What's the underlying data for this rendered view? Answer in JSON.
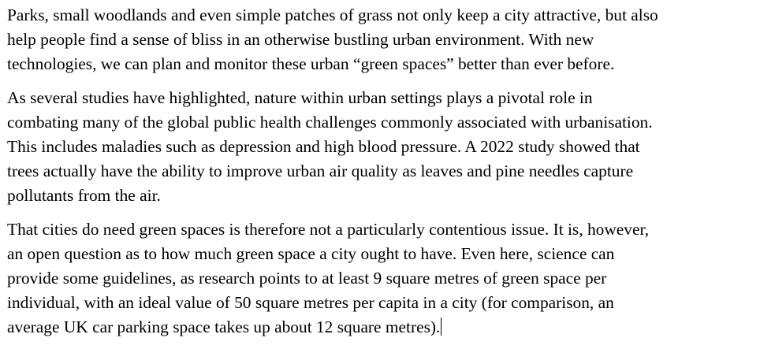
{
  "document": {
    "paragraphs": [
      {
        "lines": [
          "Parks, small woodlands and even simple patches of grass not only keep a city attractive, but also",
          "help people find a sense of bliss in an otherwise bustling urban environment. With new",
          "technologies, we can plan and monitor these urban “green spaces” better than ever before."
        ]
      },
      {
        "lines": [
          "As several studies have highlighted, nature within urban settings plays a pivotal role in",
          "combating many of the global public health challenges commonly associated with urbanisation.",
          "This includes maladies such as depression and high blood pressure. A 2022 study showed that",
          "trees actually have the ability to improve urban air quality as leaves and pine needles capture",
          "pollutants from the air."
        ]
      },
      {
        "lines": [
          "That cities do need green spaces is therefore not a particularly contentious issue. It is, however,",
          "an open question as to how much green space a city ought to have. Even here, science can",
          "provide some guidelines, as research points to at least 9 square metres of green space per",
          "individual, with an ideal value of 50 square metres per capita in a city (for comparison, an",
          "average UK car parking space takes up about 12 square metres)."
        ]
      }
    ]
  }
}
